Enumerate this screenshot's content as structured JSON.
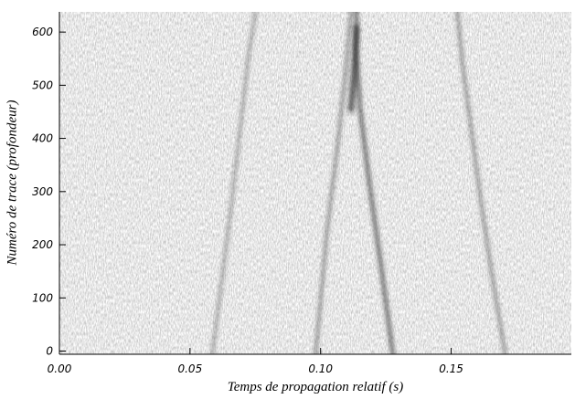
{
  "chart_data": {
    "type": "image",
    "xlabel": "Temps de propagation relatif (s)",
    "ylabel": "Numéro de trace (profondeur)",
    "xlim": [
      0,
      0.196
    ],
    "xticks": [
      {
        "value": 0,
        "label": "0.00"
      },
      {
        "value": 0.05,
        "label": "0.05"
      },
      {
        "value": 0.1,
        "label": "0.10"
      },
      {
        "value": 0.15,
        "label": "0.15"
      }
    ],
    "ylim": [
      -6,
      638
    ],
    "yticks": [
      0,
      100,
      200,
      300,
      400,
      500,
      600
    ]
  }
}
